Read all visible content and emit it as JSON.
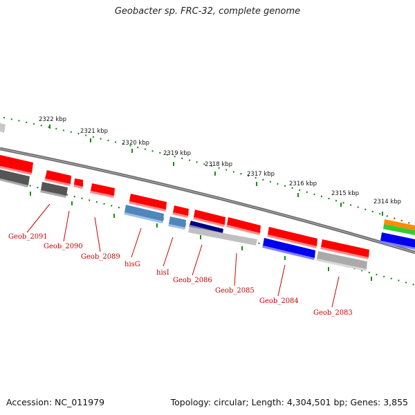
{
  "title": "Geobacter sp. FRC-32, complete genome",
  "footer": {
    "accession": "Accession: NC_011979",
    "stats": "Topology: circular; Length: 4,304,501 bp; Genes: 3,855"
  },
  "scale_labels": [
    "2322 kbp",
    "2321 kbp",
    "2320 kbp",
    "2319 kbp",
    "2318 kbp",
    "2317 kbp",
    "2316 kbp",
    "2315 kbp",
    "2314 kbp"
  ],
  "gene_labels": [
    "Geob_2091",
    "Geob_2090",
    "Geob_2089",
    "hisG",
    "hisI",
    "Geob_2086",
    "Geob_2085",
    "Geob_2084",
    "Geob_2083"
  ],
  "colors": {
    "forward_gene": "#ff0000",
    "backbone": "#888888",
    "scale_ticks": "#1a8a1a",
    "label": "#cc0000",
    "gray_gene": "#666666",
    "light_gene": "#c0c0c0",
    "steel_gene": "#4f86bc",
    "navy_gene": "#000080",
    "blue_gene": "#0000ee",
    "orange_gene": "#ff8c00",
    "green_gene": "#33cc33"
  }
}
